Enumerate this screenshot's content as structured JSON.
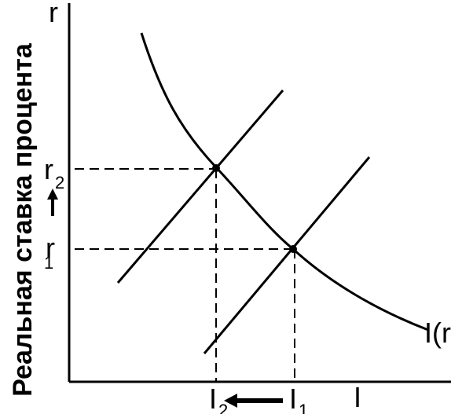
{
  "y_axis": {
    "symbol": "r",
    "title": "Реальная ставка процента"
  },
  "rates": [
    {
      "symbol": "r",
      "subscript": "2"
    },
    {
      "symbol": "r",
      "subscript": "1"
    }
  ],
  "investment": [
    {
      "symbol": "I",
      "subscript": "2"
    },
    {
      "symbol": "I",
      "subscript": "1"
    }
  ],
  "extra_x_label": "I",
  "curve_label": "I(r"
}
